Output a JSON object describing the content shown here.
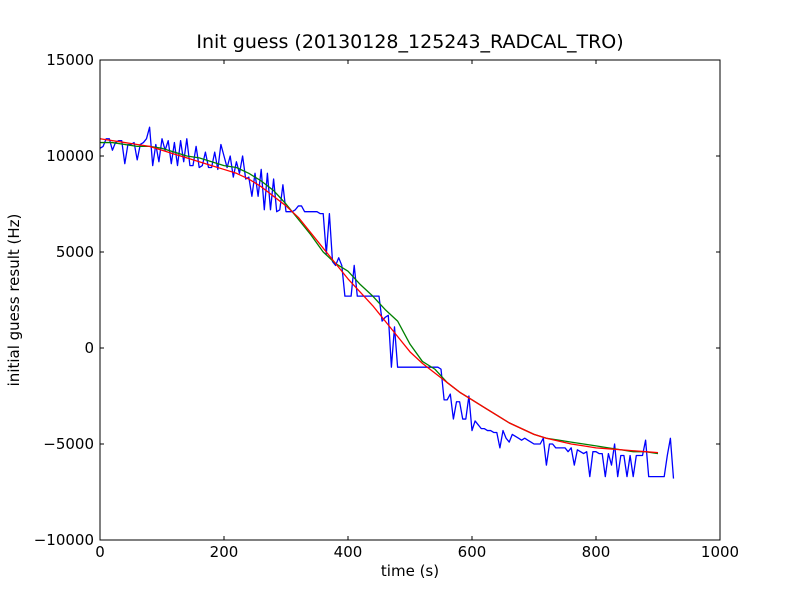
{
  "chart_data": {
    "type": "line",
    "title": "Init guess (20130128_125243_RADCAL_TRO)",
    "xlabel": "time (s)",
    "ylabel": "initial guess result (Hz)",
    "xlim": [
      0,
      1000
    ],
    "ylim": [
      -10000,
      15000
    ],
    "xticks": [
      0,
      200,
      400,
      600,
      800,
      1000
    ],
    "xtick_labels": [
      "0",
      "200",
      "400",
      "600",
      "800",
      "1000"
    ],
    "yticks": [
      -10000,
      -5000,
      0,
      5000,
      10000,
      15000
    ],
    "ytick_labels": [
      "−10000",
      "−5000",
      "0",
      "5000",
      "10000",
      "15000"
    ],
    "grid": false,
    "legend": "none",
    "series": [
      {
        "color": "#0000ff",
        "x": [
          0,
          5,
          10,
          15,
          20,
          25,
          30,
          35,
          40,
          45,
          50,
          55,
          60,
          65,
          70,
          75,
          80,
          85,
          90,
          95,
          100,
          105,
          110,
          115,
          120,
          125,
          130,
          135,
          140,
          145,
          150,
          155,
          160,
          165,
          170,
          175,
          180,
          185,
          190,
          195,
          200,
          205,
          210,
          215,
          220,
          225,
          230,
          235,
          240,
          245,
          250,
          255,
          260,
          265,
          270,
          275,
          280,
          285,
          290,
          295,
          300,
          305,
          310,
          315,
          320,
          325,
          330,
          335,
          340,
          345,
          350,
          355,
          360,
          365,
          370,
          375,
          380,
          385,
          390,
          395,
          400,
          405,
          410,
          415,
          420,
          425,
          430,
          435,
          440,
          445,
          450,
          455,
          460,
          465,
          470,
          475,
          480,
          485,
          490,
          495,
          500,
          505,
          510,
          515,
          520,
          525,
          530,
          535,
          540,
          545,
          550,
          555,
          560,
          565,
          570,
          575,
          580,
          585,
          590,
          595,
          600,
          605,
          610,
          615,
          620,
          625,
          630,
          635,
          640,
          645,
          650,
          655,
          660,
          665,
          670,
          675,
          680,
          685,
          690,
          695,
          700,
          705,
          710,
          715,
          720,
          725,
          730,
          735,
          740,
          745,
          750,
          755,
          760,
          765,
          770,
          775,
          780,
          785,
          790,
          795,
          800,
          805,
          810,
          815,
          820,
          825,
          830,
          835,
          840,
          845,
          850,
          855,
          860,
          865,
          870,
          875,
          880,
          885,
          890,
          895,
          900,
          905,
          910,
          915,
          920,
          925
        ],
        "y": [
          10400,
          10500,
          10900,
          10900,
          10300,
          10700,
          10800,
          10800,
          9600,
          10600,
          10600,
          10700,
          9800,
          10600,
          10700,
          10900,
          11500,
          9500,
          10600,
          9700,
          10900,
          10300,
          10800,
          9600,
          10700,
          9500,
          10800,
          9700,
          10900,
          9500,
          9500,
          10500,
          9400,
          9500,
          10200,
          9400,
          9400,
          10200,
          9300,
          10600,
          10000,
          9400,
          10000,
          8900,
          9700,
          9100,
          10000,
          8800,
          8900,
          7900,
          9100,
          7900,
          9300,
          7200,
          9100,
          7200,
          8800,
          7100,
          7200,
          8500,
          7100,
          7100,
          7100,
          7200,
          7400,
          7400,
          7100,
          7100,
          7100,
          7100,
          7100,
          7000,
          7000,
          4900,
          7000,
          4500,
          4300,
          4700,
          4300,
          2700,
          2700,
          2700,
          4300,
          2700,
          2700,
          2700,
          2700,
          2700,
          2700,
          2700,
          2700,
          1400,
          1600,
          1700,
          -1000,
          1100,
          -1000,
          -1000,
          -1000,
          -1000,
          -1000,
          -1000,
          -1000,
          -1000,
          -1000,
          -1000,
          -1000,
          -1000,
          -1000,
          -1000,
          -1100,
          -2700,
          -2700,
          -2400,
          -3700,
          -2800,
          -2800,
          -3700,
          -3700,
          -2500,
          -4300,
          -3800,
          -4000,
          -4200,
          -4200,
          -4300,
          -4300,
          -4400,
          -4400,
          -5200,
          -4300,
          -4700,
          -4900,
          -4500,
          -4600,
          -4700,
          -4800,
          -4700,
          -4800,
          -4900,
          -5000,
          -5000,
          -5000,
          -4700,
          -6100,
          -5000,
          -5000,
          -5200,
          -5200,
          -5200,
          -5200,
          -5400,
          -5200,
          -6100,
          -5300,
          -5400,
          -5500,
          -5400,
          -6700,
          -5400,
          -5400,
          -5500,
          -5500,
          -6700,
          -5500,
          -6100,
          -5000,
          -6700,
          -5600,
          -5600,
          -6700,
          -5600,
          -6700,
          -5600,
          -5600,
          -5600,
          -4800,
          -6700,
          -6700,
          -6700,
          -6700,
          -6700,
          -6700,
          -5600,
          -4700,
          -6800
        ]
      },
      {
        "color": "#008000",
        "x": [
          0,
          20,
          40,
          60,
          80,
          100,
          120,
          140,
          160,
          180,
          200,
          220,
          240,
          260,
          280,
          300,
          320,
          340,
          360,
          380,
          400,
          420,
          440,
          460,
          480,
          500,
          520,
          540,
          560,
          580,
          600,
          620,
          640,
          660,
          680,
          700,
          720,
          740,
          760,
          780,
          800,
          820,
          840,
          860,
          880,
          900
        ],
        "y": [
          10700,
          10700,
          10600,
          10500,
          10500,
          10400,
          10200,
          10000,
          9900,
          9700,
          9500,
          9400,
          9100,
          8700,
          8200,
          7500,
          6700,
          5900,
          5000,
          4400,
          4000,
          3300,
          2700,
          2000,
          1400,
          200,
          -700,
          -1100,
          -1800,
          -2300,
          -2700,
          -3100,
          -3500,
          -3900,
          -4200,
          -4500,
          -4700,
          -4800,
          -4900,
          -5000,
          -5100,
          -5200,
          -5300,
          -5400,
          -5400,
          -5500
        ]
      },
      {
        "color": "#ff0000",
        "x": [
          0,
          20,
          40,
          60,
          80,
          100,
          120,
          140,
          160,
          180,
          200,
          220,
          240,
          260,
          280,
          300,
          320,
          340,
          360,
          380,
          400,
          420,
          440,
          460,
          480,
          500,
          520,
          540,
          560,
          580,
          600,
          620,
          640,
          660,
          680,
          700,
          720,
          740,
          760,
          780,
          800,
          820,
          840,
          860,
          880,
          900
        ],
        "y": [
          10900,
          10800,
          10700,
          10600,
          10500,
          10300,
          10100,
          9900,
          9700,
          9500,
          9300,
          9100,
          8800,
          8400,
          7900,
          7400,
          6800,
          6000,
          5200,
          4400,
          3600,
          2900,
          2200,
          1400,
          600,
          -200,
          -800,
          -1300,
          -1800,
          -2300,
          -2700,
          -3100,
          -3500,
          -3900,
          -4200,
          -4500,
          -4700,
          -4850,
          -5000,
          -5100,
          -5200,
          -5250,
          -5300,
          -5350,
          -5400,
          -5450
        ]
      }
    ]
  }
}
